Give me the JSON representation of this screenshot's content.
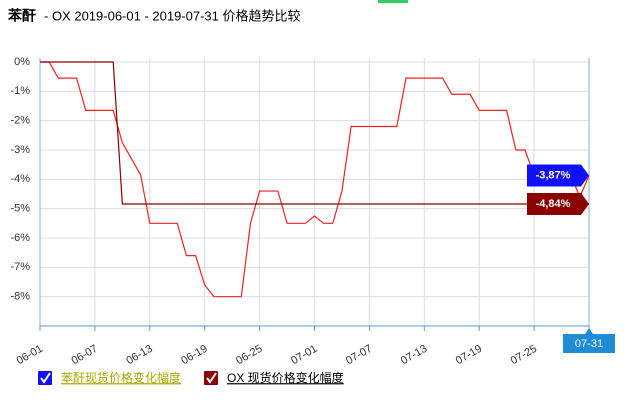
{
  "chart_data": {
    "type": "line",
    "title_strong": "苯酐",
    "title": "- OX 2019-06-01 - 2019-07-31 价格趋势比较",
    "categories": [
      "06-01",
      null,
      null,
      null,
      null,
      null,
      "06-07",
      null,
      null,
      null,
      null,
      null,
      "06-13",
      null,
      null,
      null,
      null,
      null,
      "06-19",
      null,
      null,
      null,
      null,
      null,
      "06-25",
      null,
      null,
      null,
      null,
      null,
      "07-01",
      null,
      null,
      null,
      null,
      null,
      "07-07",
      null,
      null,
      null,
      null,
      null,
      "07-13",
      null,
      null,
      null,
      null,
      null,
      "07-19",
      null,
      null,
      null,
      null,
      null,
      "07-25",
      null,
      null,
      null,
      null,
      null,
      "07-31"
    ],
    "series": [
      {
        "name": "苯酐现货价格变化幅度",
        "color": "#ee2222",
        "label_color": "#1010ff",
        "legend_text_color": "#a8a800",
        "values": [
          0,
          0,
          -0.55,
          -0.55,
          -0.55,
          -1.65,
          -1.65,
          -1.65,
          -1.65,
          -2.75,
          -3.3,
          -3.85,
          -5.5,
          -5.5,
          -5.5,
          -5.5,
          -6.6,
          -6.6,
          -7.6,
          -8,
          -8,
          -8,
          -8,
          -5.5,
          -4.4,
          -4.4,
          -4.4,
          -5.5,
          -5.5,
          -5.5,
          -5.25,
          -5.5,
          -5.5,
          -4.4,
          -2.2,
          -2.2,
          -2.2,
          -2.2,
          -2.2,
          -2.2,
          -0.55,
          -0.55,
          -0.55,
          -0.55,
          -0.55,
          -1.1,
          -1.1,
          -1.1,
          -1.65,
          -1.65,
          -1.65,
          -1.65,
          -3,
          -3,
          -3.85,
          -3.85,
          -3.85,
          -3.85,
          -3.85,
          -4.6,
          -3.87
        ],
        "value_labels": [
          null,
          null,
          null,
          null,
          null,
          null,
          null,
          null,
          null,
          null,
          null,
          null,
          null,
          null,
          null,
          null,
          null,
          null,
          null,
          null,
          null,
          null,
          null,
          null,
          null,
          null,
          null,
          null,
          null,
          null,
          null,
          null,
          null,
          null,
          null,
          null,
          null,
          null,
          null,
          null,
          null,
          null,
          null,
          null,
          null,
          null,
          null,
          null,
          null,
          null,
          null,
          null,
          null,
          null,
          null,
          null,
          null,
          null,
          null,
          null,
          "-3,87%"
        ]
      },
      {
        "name": "OX 现货价格变化幅度",
        "color": "#8b0000",
        "label_color": "#8b0000",
        "legend_text_color": "#000000",
        "values": [
          0,
          0,
          0,
          0,
          0,
          0,
          0,
          0,
          0,
          -4.84,
          -4.84,
          -4.84,
          -4.84,
          -4.84,
          -4.84,
          -4.84,
          -4.84,
          -4.84,
          -4.84,
          -4.84,
          -4.84,
          -4.84,
          -4.84,
          -4.84,
          -4.84,
          -4.84,
          -4.84,
          -4.84,
          -4.84,
          -4.84,
          -4.84,
          -4.84,
          -4.84,
          -4.84,
          -4.84,
          -4.84,
          -4.84,
          -4.84,
          -4.84,
          -4.84,
          -4.84,
          -4.84,
          -4.84,
          -4.84,
          -4.84,
          -4.84,
          -4.84,
          -4.84,
          -4.84,
          -4.84,
          -4.84,
          -4.84,
          -4.84,
          -4.84,
          -4.84,
          -4.84,
          -4.84,
          -4.84,
          -4.84,
          -4.84,
          -4.84
        ],
        "value_labels": [
          null,
          null,
          null,
          null,
          null,
          null,
          null,
          null,
          null,
          null,
          null,
          null,
          null,
          null,
          null,
          null,
          null,
          null,
          null,
          null,
          null,
          null,
          null,
          null,
          null,
          null,
          null,
          null,
          null,
          null,
          null,
          null,
          null,
          null,
          null,
          null,
          null,
          null,
          null,
          null,
          null,
          null,
          null,
          null,
          null,
          null,
          null,
          null,
          null,
          null,
          null,
          null,
          null,
          null,
          null,
          null,
          null,
          null,
          null,
          null,
          "-4,84%"
        ]
      }
    ],
    "ylim": [
      -9,
      0
    ],
    "yticks": [
      {
        "value": 0,
        "label": "0%"
      },
      {
        "value": -1,
        "label": "-1%"
      },
      {
        "value": -2,
        "label": "-2%"
      },
      {
        "value": -3,
        "label": "-3%"
      },
      {
        "value": -4,
        "label": "-4%"
      },
      {
        "value": -5,
        "label": "-5%"
      },
      {
        "value": -6,
        "label": "-6%"
      },
      {
        "value": -7,
        "label": "-7%"
      },
      {
        "value": -8,
        "label": "-8%"
      }
    ],
    "grid": true
  }
}
